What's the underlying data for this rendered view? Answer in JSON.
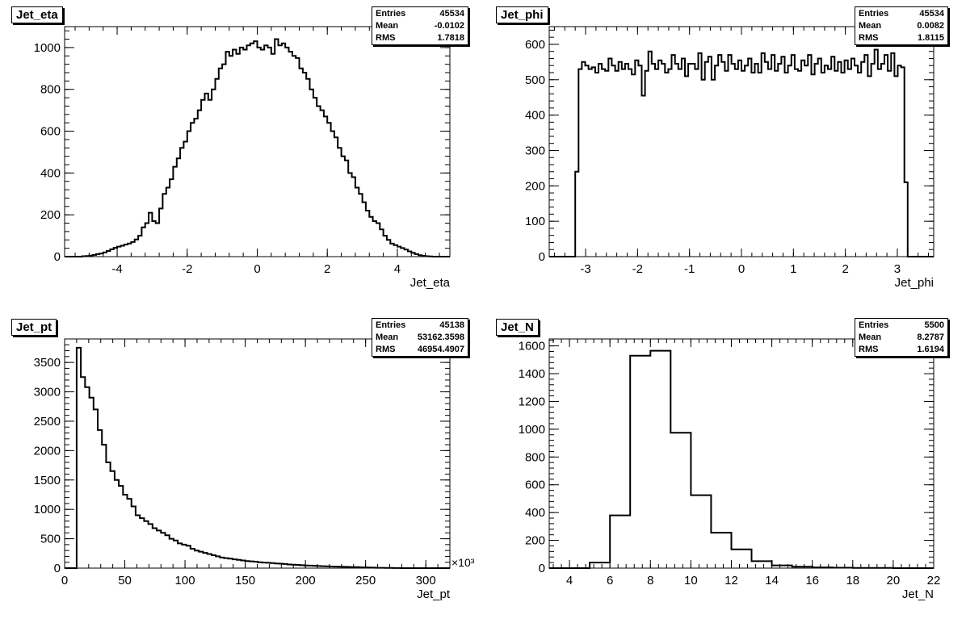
{
  "chart_data": [
    {
      "type": "histogram",
      "title": "Jet_eta",
      "xlabel": "Jet_eta",
      "xlim": [
        -5.5,
        5.5
      ],
      "ylim": [
        0,
        1100
      ],
      "xticks": [
        -4,
        -2,
        0,
        2,
        4
      ],
      "xtick_labels": [
        "-4",
        "-2",
        "0",
        "2",
        "4"
      ],
      "yticks": [
        0,
        200,
        400,
        600,
        800,
        1000
      ],
      "ytick_labels": [
        "0",
        "200",
        "400",
        "600",
        "800",
        "1000"
      ],
      "xmultiplier": "",
      "stats": {
        "entries_label": "Entries",
        "entries": "45534",
        "mean_label": "Mean",
        "mean": "-0.0102",
        "rms_label": "RMS",
        "rms": "1.7818"
      },
      "bin_edges_start": -5.0,
      "bin_width": 0.1,
      "values": [
        2,
        3,
        5,
        8,
        12,
        15,
        20,
        27,
        35,
        42,
        48,
        52,
        58,
        63,
        70,
        82,
        100,
        140,
        160,
        210,
        170,
        160,
        230,
        300,
        330,
        370,
        430,
        470,
        520,
        550,
        600,
        640,
        660,
        700,
        750,
        780,
        750,
        800,
        850,
        900,
        920,
        980,
        960,
        990,
        970,
        1000,
        990,
        1010,
        1020,
        1030,
        1000,
        990,
        1010,
        1000,
        970,
        1040,
        1010,
        1020,
        1000,
        980,
        960,
        950,
        900,
        880,
        850,
        800,
        760,
        720,
        700,
        670,
        640,
        600,
        570,
        520,
        480,
        460,
        400,
        380,
        330,
        300,
        260,
        220,
        190,
        170,
        160,
        130,
        100,
        80,
        62,
        55,
        48,
        41,
        34,
        25,
        18,
        12,
        7,
        4,
        2,
        1
      ]
    },
    {
      "type": "histogram",
      "title": "Jet_phi",
      "xlabel": "Jet_phi",
      "xlim": [
        -3.7,
        3.7
      ],
      "ylim": [
        0,
        650
      ],
      "xticks": [
        -3,
        -2,
        -1,
        0,
        1,
        2,
        3
      ],
      "xtick_labels": [
        "-3",
        "-2",
        "-1",
        "0",
        "1",
        "2",
        "3"
      ],
      "yticks": [
        0,
        100,
        200,
        300,
        400,
        500,
        600
      ],
      "ytick_labels": [
        "0",
        "100",
        "200",
        "300",
        "400",
        "500",
        "600"
      ],
      "xmultiplier": "",
      "stats": {
        "entries_label": "Entries",
        "entries": "45534",
        "mean_label": "Mean",
        "mean": "0.0082",
        "rms_label": "RMS",
        "rms": "1.8115"
      },
      "bin_edges_start": -3.2,
      "bin_width": 0.064,
      "values": [
        240,
        530,
        550,
        540,
        530,
        535,
        520,
        545,
        530,
        525,
        560,
        540,
        525,
        550,
        530,
        545,
        530,
        515,
        555,
        540,
        455,
        525,
        580,
        545,
        530,
        555,
        545,
        520,
        530,
        570,
        545,
        530,
        560,
        510,
        545,
        545,
        530,
        575,
        500,
        550,
        565,
        500,
        540,
        570,
        550,
        525,
        570,
        545,
        530,
        555,
        525,
        540,
        560,
        520,
        545,
        520,
        575,
        550,
        530,
        570,
        525,
        545,
        565,
        520,
        540,
        570,
        530,
        525,
        555,
        540,
        570,
        515,
        545,
        560,
        520,
        540,
        530,
        565,
        525,
        550,
        520,
        555,
        530,
        560,
        540,
        520,
        550,
        570,
        510,
        545,
        585,
        530,
        545,
        570,
        525,
        575,
        510,
        540,
        535,
        210
      ]
    },
    {
      "type": "histogram",
      "title": "Jet_pt",
      "xlabel": "Jet_pt",
      "xlim": [
        0,
        320
      ],
      "ylim": [
        0,
        3900
      ],
      "xticks": [
        0,
        50,
        100,
        150,
        200,
        250,
        300
      ],
      "xtick_labels": [
        "0",
        "50",
        "100",
        "150",
        "200",
        "250",
        "300"
      ],
      "yticks": [
        0,
        500,
        1000,
        1500,
        2000,
        2500,
        3000,
        3500
      ],
      "ytick_labels": [
        "0",
        "500",
        "1000",
        "1500",
        "2000",
        "2500",
        "3000",
        "3500"
      ],
      "xmultiplier": "×10³",
      "stats": {
        "entries_label": "Entries",
        "entries": "45138",
        "mean_label": "Mean",
        "mean": "53162.3598",
        "rms_label": "RMS",
        "rms": "46954.4907"
      },
      "bin_edges_start": 10,
      "bin_width": 3.5,
      "values": [
        3750,
        3250,
        3080,
        2900,
        2700,
        2350,
        2100,
        1800,
        1650,
        1500,
        1400,
        1250,
        1180,
        1050,
        900,
        850,
        800,
        750,
        680,
        640,
        600,
        560,
        500,
        470,
        420,
        400,
        380,
        330,
        300,
        280,
        260,
        240,
        220,
        200,
        180,
        170,
        160,
        150,
        140,
        130,
        120,
        115,
        110,
        100,
        95,
        90,
        85,
        80,
        75,
        70,
        62,
        58,
        55,
        50,
        45,
        42,
        40,
        36,
        33,
        30,
        28,
        26,
        24,
        22,
        20,
        18,
        16,
        14,
        12,
        10,
        8,
        6,
        5,
        4,
        3,
        2,
        1
      ]
    },
    {
      "type": "histogram",
      "title": "Jet_N",
      "xlabel": "Jet_N",
      "xlim": [
        3,
        22
      ],
      "ylim": [
        0,
        1650
      ],
      "xticks": [
        4,
        6,
        8,
        10,
        12,
        14,
        16,
        18,
        20,
        22
      ],
      "xtick_labels": [
        "4",
        "6",
        "8",
        "10",
        "12",
        "14",
        "16",
        "18",
        "20",
        "22"
      ],
      "yticks": [
        0,
        200,
        400,
        600,
        800,
        1000,
        1200,
        1400,
        1600
      ],
      "ytick_labels": [
        "0",
        "200",
        "400",
        "600",
        "800",
        "1000",
        "1200",
        "1400",
        "1600"
      ],
      "xmultiplier": "",
      "stats": {
        "entries_label": "Entries",
        "entries": "5500",
        "mean_label": "Mean",
        "mean": "8.2787",
        "rms_label": "RMS",
        "rms": "1.6194"
      },
      "bin_edges_start": 3,
      "bin_width": 1,
      "values": [
        0,
        0,
        40,
        380,
        1530,
        1565,
        975,
        525,
        255,
        135,
        50,
        20,
        10,
        5,
        3,
        2,
        1,
        0,
        0
      ]
    }
  ]
}
